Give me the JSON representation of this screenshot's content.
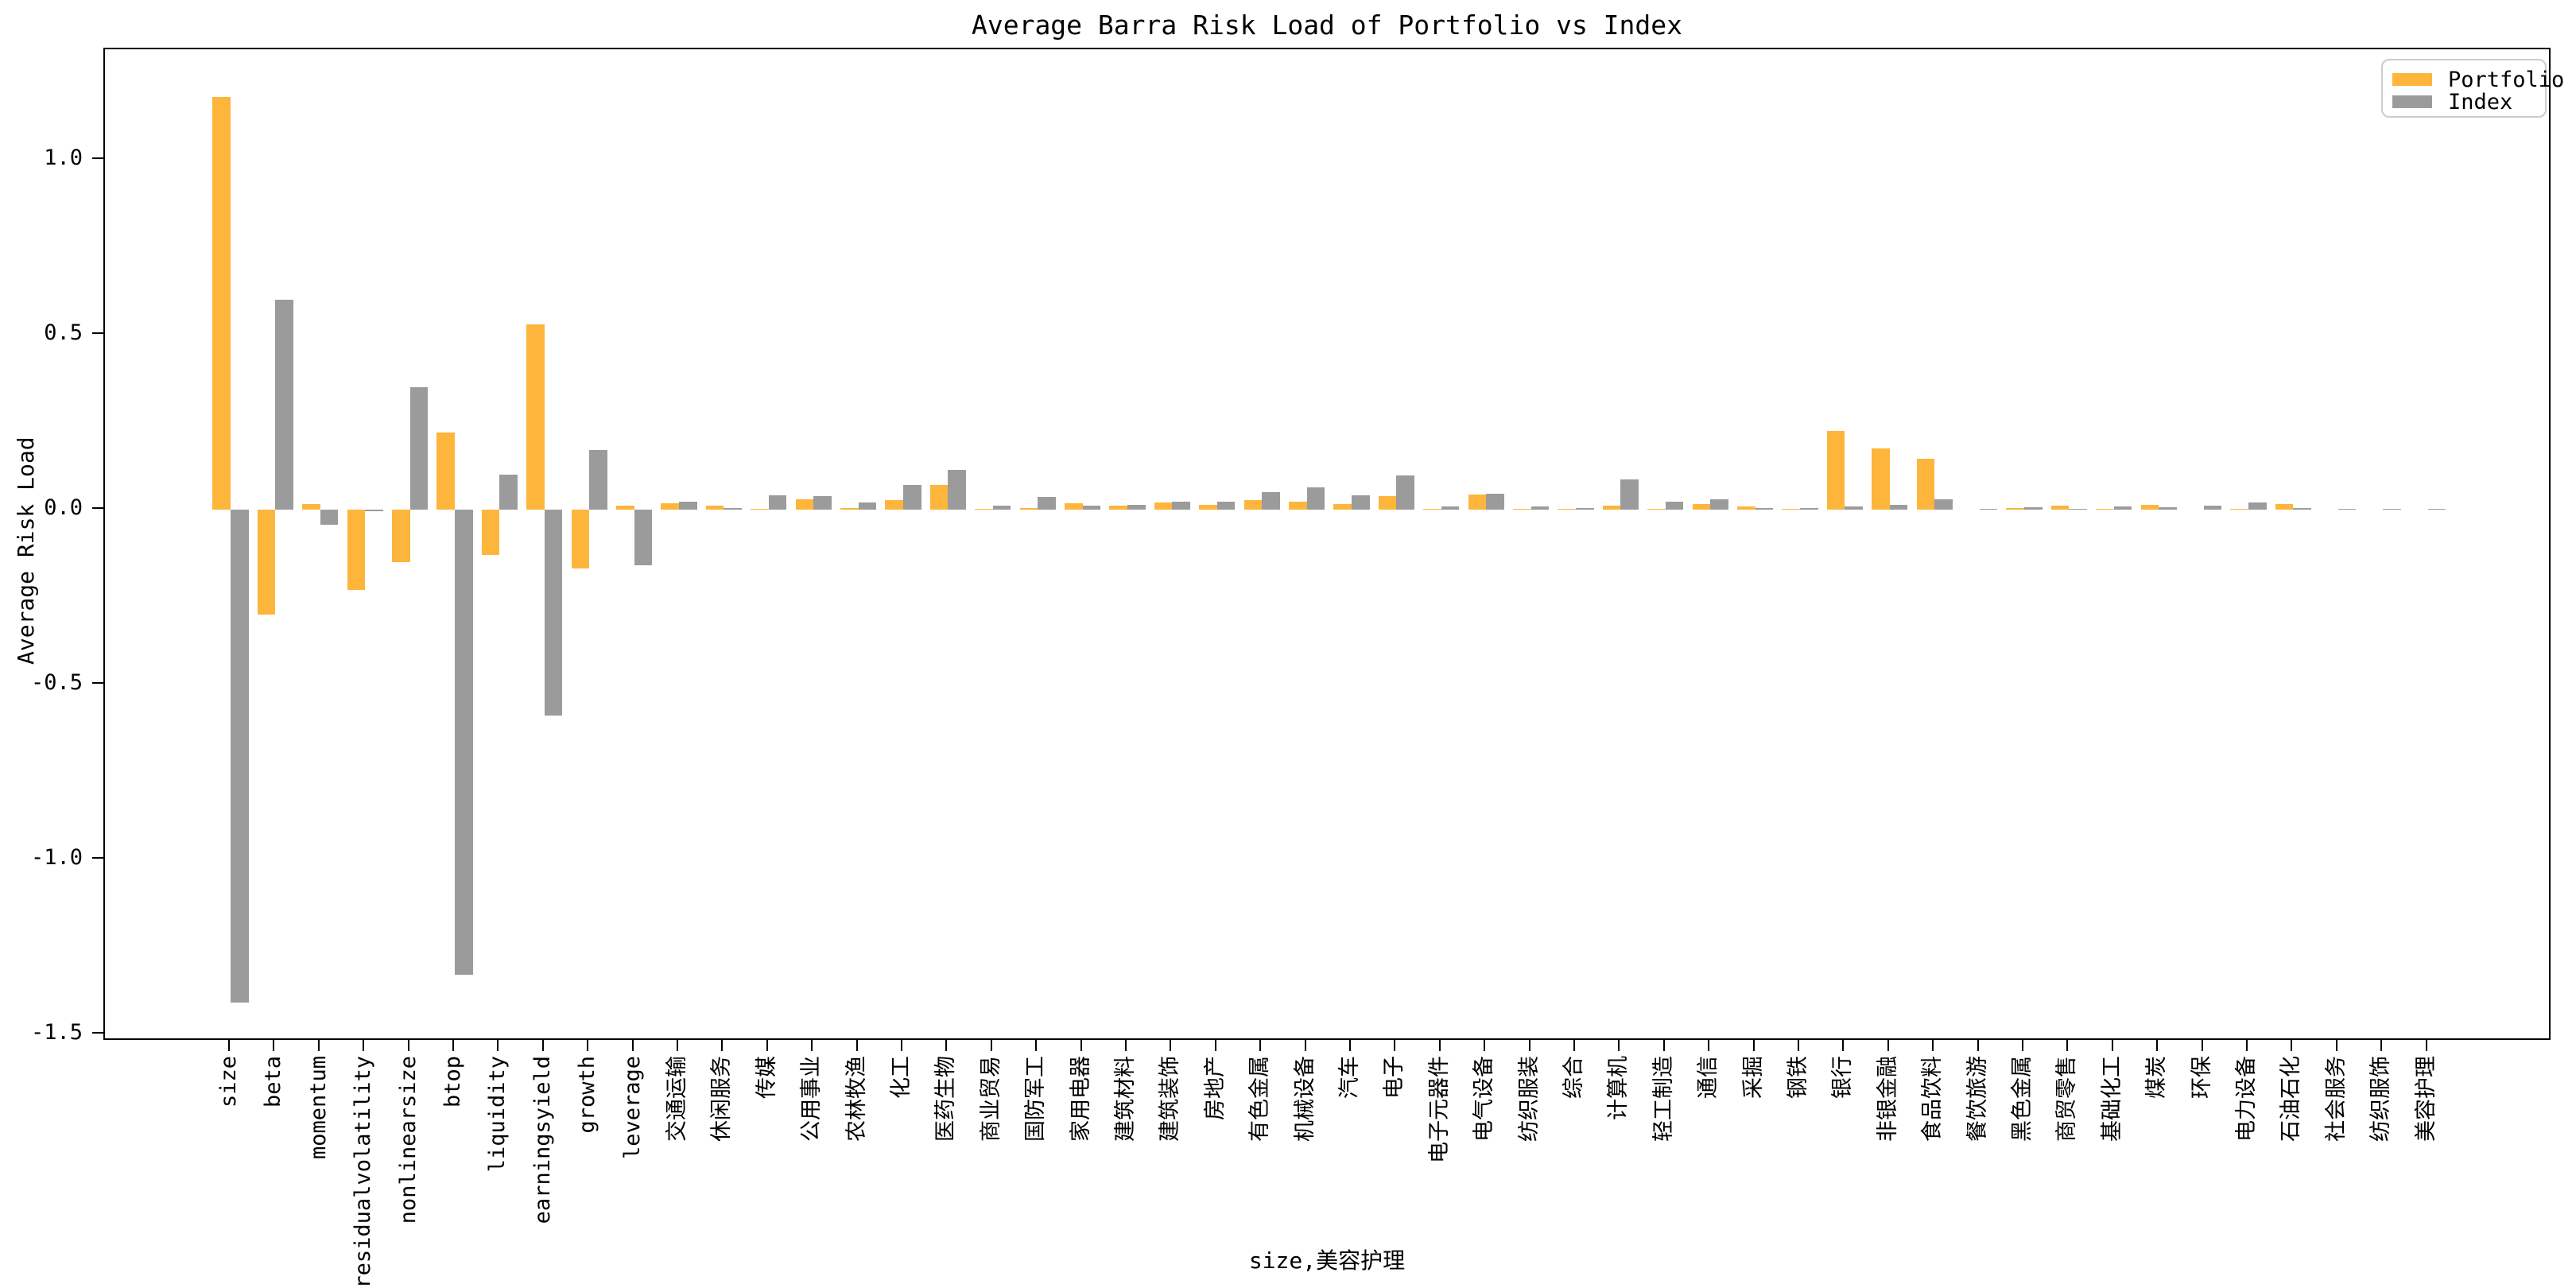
{
  "chart_data": {
    "type": "bar",
    "title": "Average Barra Risk Load of Portfolio vs Index",
    "xlabel": "size,美容护理",
    "ylabel": "Average Risk Load",
    "legend_position": "upper right",
    "grid": false,
    "ylim": [
      -1.52,
      1.32
    ],
    "yticks": [
      1.0,
      0.5,
      0.0,
      -0.5,
      -1.0,
      -1.5
    ],
    "categories": [
      "size",
      "beta",
      "momentum",
      "residualvolatility",
      "nonlinearsize",
      "btop",
      "liquidity",
      "earningsyield",
      "growth",
      "leverage",
      "交通运输",
      "休闲服务",
      "传媒",
      "公用事业",
      "农林牧渔",
      "化工",
      "医药生物",
      "商业贸易",
      "国防军工",
      "家用电器",
      "建筑材料",
      "建筑装饰",
      "房地产",
      "有色金属",
      "机械设备",
      "汽车",
      "电子",
      "电子元器件",
      "电气设备",
      "纺织服装",
      "综合",
      "计算机",
      "轻工制造",
      "通信",
      "采掘",
      "钢铁",
      "银行",
      "非银金融",
      "食品饮料",
      "餐饮旅游",
      "黑色金属",
      "商贸零售",
      "基础化工",
      "煤炭",
      "环保",
      "电力设备",
      "石油石化",
      "社会服务",
      "纺织服饰",
      "美容护理"
    ],
    "series": [
      {
        "name": "Portfolio",
        "color": "#FDB53C",
        "values": [
          1.18,
          -0.3,
          0.015,
          -0.23,
          -0.15,
          0.22,
          -0.13,
          0.53,
          -0.17,
          0.01,
          0.018,
          0.011,
          0.002,
          0.03,
          0.003,
          0.027,
          0.07,
          0.002,
          0.005,
          0.018,
          0.01,
          0.02,
          0.014,
          0.026,
          0.023,
          0.015,
          0.038,
          0.001,
          0.042,
          0.001,
          0.001,
          0.01,
          0.002,
          0.015,
          0.009,
          0.001,
          0.224,
          0.174,
          0.146,
          0.0,
          0.003,
          0.011,
          0.001,
          0.014,
          0.0,
          0.001,
          0.015,
          0.0,
          0.0,
          0.0
        ]
      },
      {
        "name": "Index",
        "color": "#9B9B9B",
        "values": [
          -1.41,
          0.6,
          -0.045,
          -0.005,
          0.35,
          -1.33,
          0.1,
          -0.59,
          0.17,
          -0.16,
          0.022,
          0.003,
          0.04,
          0.037,
          0.019,
          0.069,
          0.113,
          0.011,
          0.036,
          0.011,
          0.012,
          0.023,
          0.023,
          0.049,
          0.064,
          0.04,
          0.097,
          0.008,
          0.046,
          0.008,
          0.004,
          0.086,
          0.022,
          0.029,
          0.005,
          0.004,
          0.008,
          0.014,
          0.029,
          0.001,
          0.006,
          0.002,
          0.008,
          0.007,
          0.01,
          0.021,
          0.004,
          0.002,
          0.002,
          0.002
        ]
      }
    ]
  },
  "colors": {
    "portfolio": "#FDB53C",
    "index": "#9B9B9B",
    "axis": "#000000",
    "legend_border": "#cccccc",
    "background": "#ffffff"
  }
}
